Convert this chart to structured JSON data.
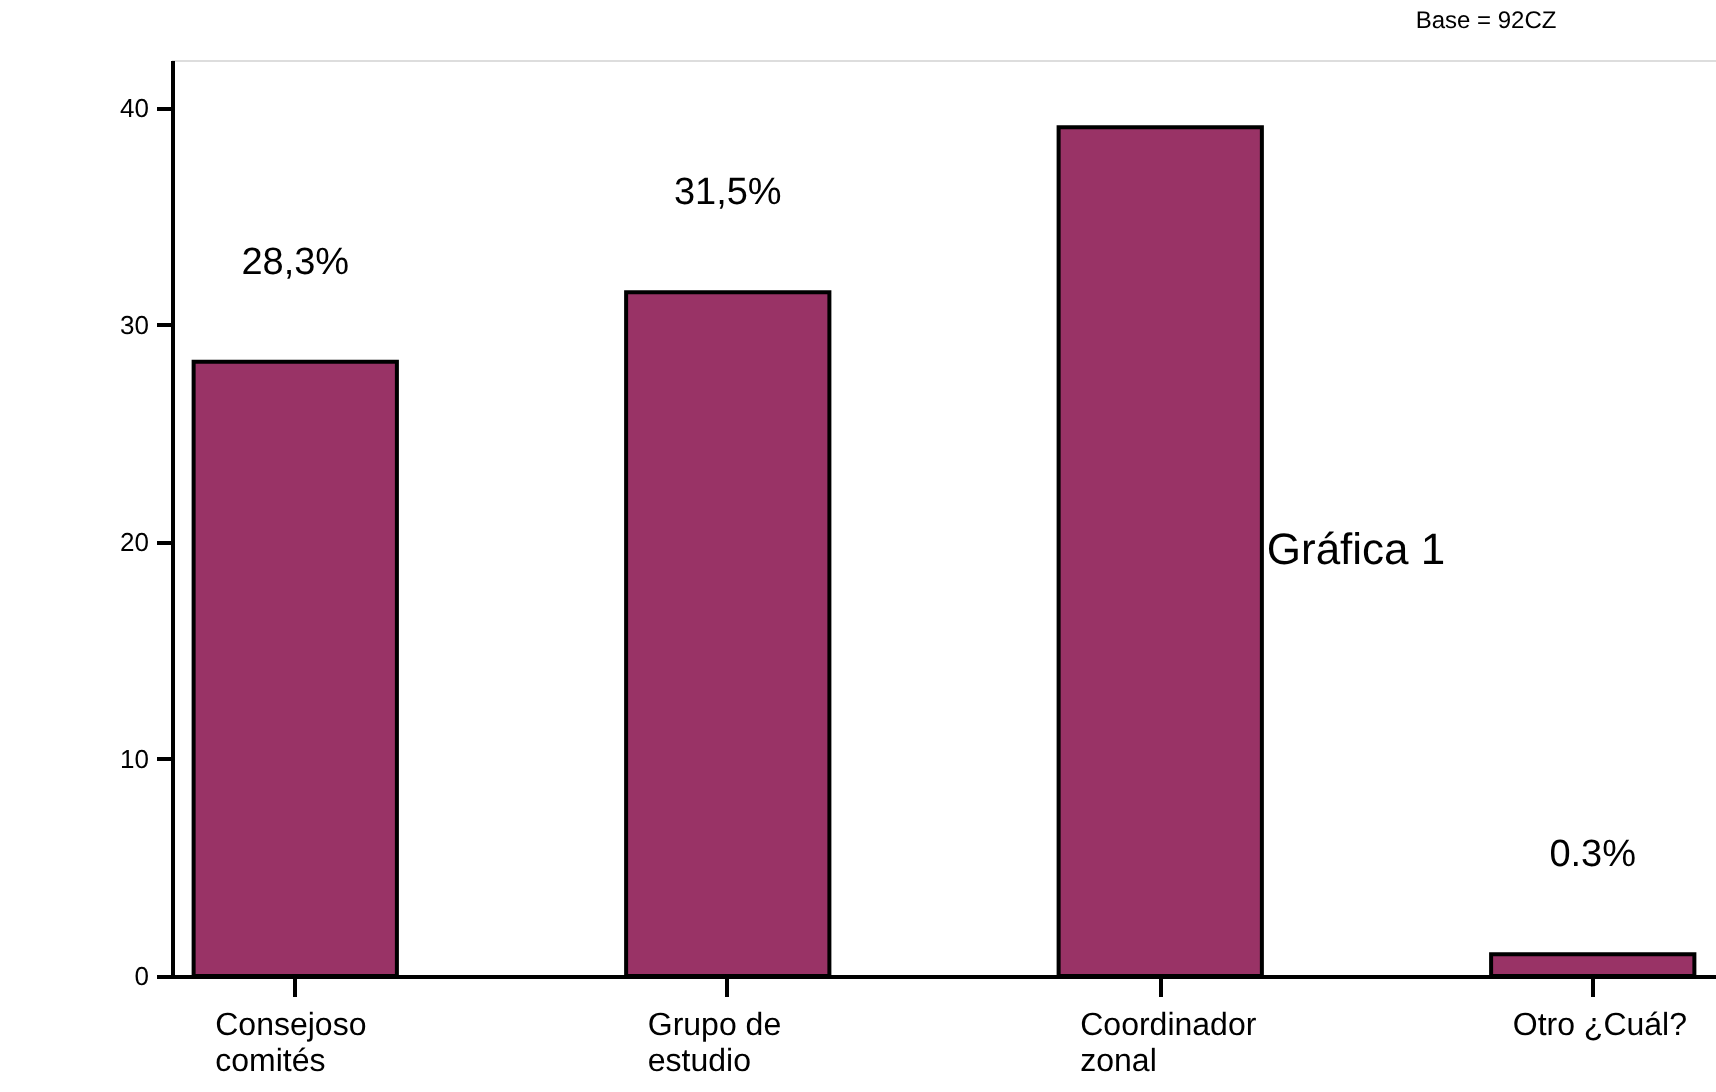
{
  "chart_data": {
    "type": "bar",
    "categories": [
      "Consejoso\ncomités",
      "Grupo de\nestudio",
      "Coordinador\nzonal",
      "Otro ¿Cuál?"
    ],
    "series": [
      {
        "color": "#993366",
        "values": [
          28.3,
          31.5,
          39.1,
          1.0
        ]
      }
    ],
    "value_labels": [
      "28,3%",
      "31,5%",
      null,
      "0.3%"
    ],
    "ylim": [
      0,
      42.2
    ],
    "yticks": [
      0,
      10,
      20,
      30,
      40
    ],
    "annotations": [
      "Base = 92CZ",
      "Gráfica 1"
    ],
    "grid": false
  }
}
